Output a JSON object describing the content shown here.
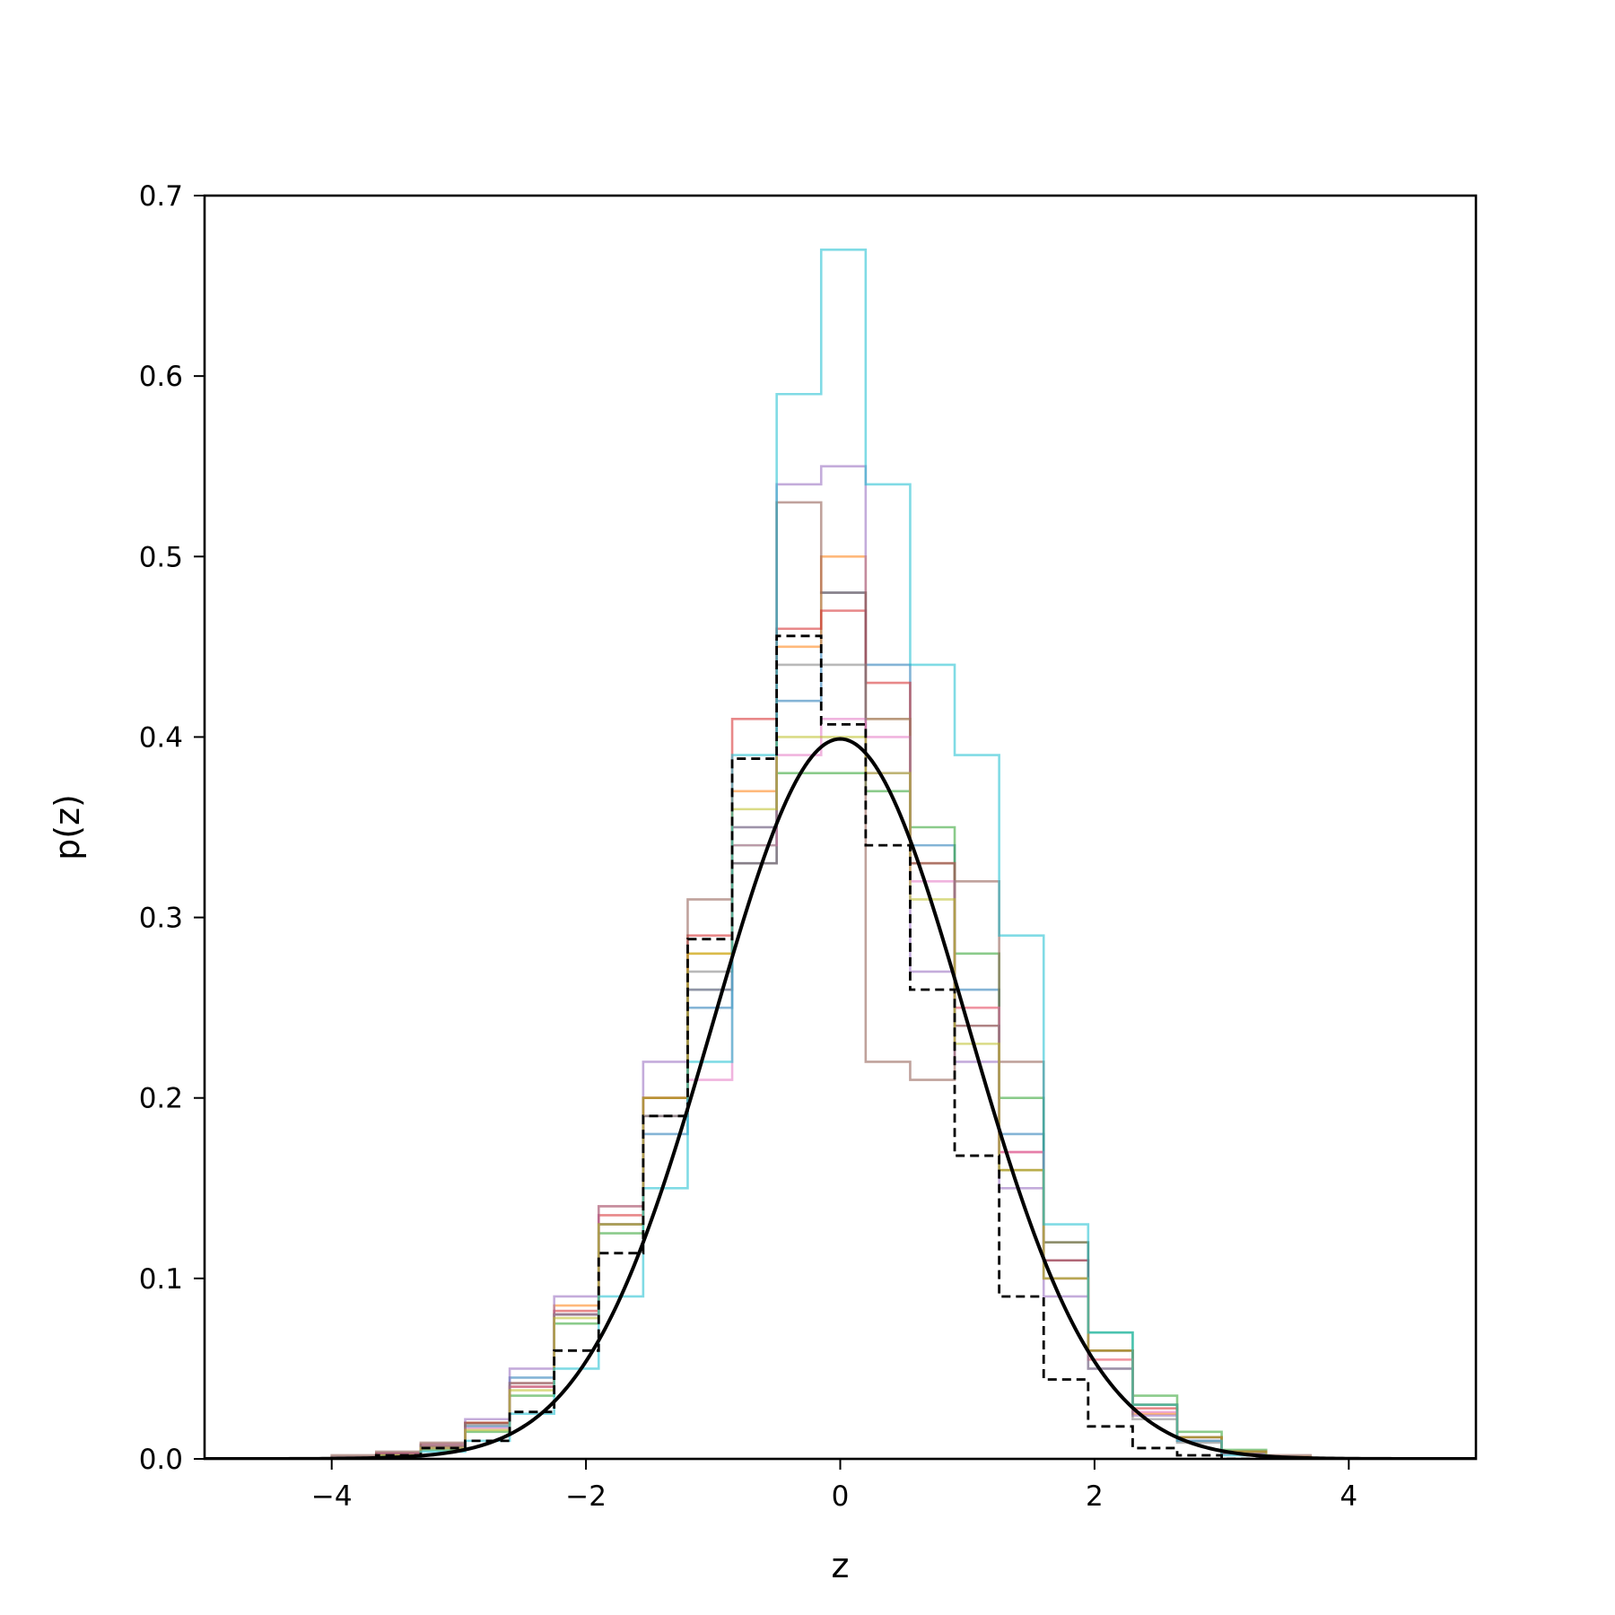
{
  "chart_data": {
    "type": "line",
    "title": "",
    "xlabel": "z",
    "ylabel": "p(z)",
    "xlim": [
      -5,
      5
    ],
    "ylim": [
      0,
      0.7
    ],
    "xticks": [
      -4,
      -2,
      0,
      2,
      4
    ],
    "xtick_labels": [
      "−4",
      "−2",
      "0",
      "2",
      "4"
    ],
    "yticks": [
      0.0,
      0.1,
      0.2,
      0.3,
      0.4,
      0.5,
      0.6,
      0.7
    ],
    "ytick_labels": [
      "0.0",
      "0.1",
      "0.2",
      "0.3",
      "0.4",
      "0.5",
      "0.6",
      "0.7"
    ],
    "grid": false,
    "legend": "none",
    "histogram_edges": [
      -4.0,
      -3.65,
      -3.3,
      -2.95,
      -2.6,
      -2.25,
      -1.9,
      -1.55,
      -1.2,
      -0.85,
      -0.5,
      -0.15,
      0.2,
      0.55,
      0.9,
      1.25,
      1.6,
      1.95,
      2.3,
      2.65,
      3.0,
      3.35,
      3.7
    ],
    "series": [
      {
        "kind": "step",
        "color": "#1f77b4",
        "densities": [
          0.0,
          0.002,
          0.006,
          0.018,
          0.045,
          0.08,
          0.13,
          0.18,
          0.25,
          0.33,
          0.42,
          0.48,
          0.44,
          0.34,
          0.26,
          0.18,
          0.11,
          0.06,
          0.03,
          0.012,
          0.004,
          0.001
        ]
      },
      {
        "kind": "step",
        "color": "#ff7f0e",
        "densities": [
          0.001,
          0.003,
          0.008,
          0.02,
          0.04,
          0.085,
          0.14,
          0.2,
          0.28,
          0.37,
          0.45,
          0.5,
          0.41,
          0.33,
          0.25,
          0.16,
          0.1,
          0.055,
          0.025,
          0.01,
          0.003,
          0.001
        ]
      },
      {
        "kind": "step",
        "color": "#2ca02c",
        "densities": [
          0.0,
          0.002,
          0.005,
          0.015,
          0.035,
          0.075,
          0.125,
          0.19,
          0.26,
          0.34,
          0.38,
          0.38,
          0.37,
          0.35,
          0.28,
          0.2,
          0.12,
          0.07,
          0.035,
          0.015,
          0.005,
          0.001
        ]
      },
      {
        "kind": "step",
        "color": "#d62728",
        "densities": [
          0.0,
          0.003,
          0.007,
          0.02,
          0.042,
          0.082,
          0.135,
          0.2,
          0.29,
          0.41,
          0.46,
          0.47,
          0.43,
          0.33,
          0.24,
          0.17,
          0.11,
          0.06,
          0.028,
          0.012,
          0.004,
          0.001
        ]
      },
      {
        "kind": "step",
        "color": "#9467bd",
        "densities": [
          0.001,
          0.003,
          0.008,
          0.022,
          0.05,
          0.09,
          0.14,
          0.22,
          0.26,
          0.35,
          0.54,
          0.55,
          0.38,
          0.27,
          0.22,
          0.15,
          0.09,
          0.05,
          0.024,
          0.01,
          0.003,
          0.001
        ]
      },
      {
        "kind": "step",
        "color": "#8c564b",
        "densities": [
          0.002,
          0.004,
          0.009,
          0.02,
          0.04,
          0.08,
          0.13,
          0.2,
          0.31,
          0.33,
          0.53,
          0.48,
          0.22,
          0.21,
          0.32,
          0.22,
          0.12,
          0.06,
          0.03,
          0.012,
          0.004,
          0.002
        ]
      },
      {
        "kind": "step",
        "color": "#e377c2",
        "densities": [
          0.0,
          0.002,
          0.006,
          0.017,
          0.04,
          0.08,
          0.13,
          0.19,
          0.21,
          0.34,
          0.39,
          0.41,
          0.4,
          0.32,
          0.25,
          0.17,
          0.1,
          0.055,
          0.026,
          0.01,
          0.003,
          0.001
        ]
      },
      {
        "kind": "step",
        "color": "#7f7f7f",
        "densities": [
          0.001,
          0.002,
          0.007,
          0.019,
          0.042,
          0.08,
          0.13,
          0.19,
          0.27,
          0.35,
          0.44,
          0.44,
          0.41,
          0.33,
          0.24,
          0.16,
          0.1,
          0.05,
          0.022,
          0.009,
          0.003,
          0.001
        ]
      },
      {
        "kind": "step",
        "color": "#bcbd22",
        "densities": [
          0.0,
          0.002,
          0.006,
          0.016,
          0.038,
          0.078,
          0.13,
          0.2,
          0.28,
          0.36,
          0.4,
          0.4,
          0.38,
          0.31,
          0.23,
          0.16,
          0.1,
          0.06,
          0.03,
          0.012,
          0.004,
          0.001
        ]
      },
      {
        "kind": "step",
        "color": "#17becf",
        "densities": [
          0.0,
          0.001,
          0.004,
          0.01,
          0.025,
          0.05,
          0.09,
          0.15,
          0.22,
          0.39,
          0.59,
          0.67,
          0.54,
          0.44,
          0.39,
          0.29,
          0.13,
          0.07,
          0.03,
          0.01,
          0.002,
          0.0
        ]
      },
      {
        "kind": "step",
        "color": "#000000",
        "dashed": true,
        "densities": [
          0.0,
          0.002,
          0.006,
          0.01,
          0.026,
          0.06,
          0.114,
          0.19,
          0.288,
          0.388,
          0.456,
          0.407,
          0.34,
          0.26,
          0.168,
          0.09,
          0.044,
          0.018,
          0.006,
          0.002,
          0.0,
          0.0
        ]
      },
      {
        "kind": "curve",
        "name": "",
        "color": "#000000",
        "function": "standard normal pdf",
        "mean": 0,
        "std": 1
      }
    ]
  }
}
